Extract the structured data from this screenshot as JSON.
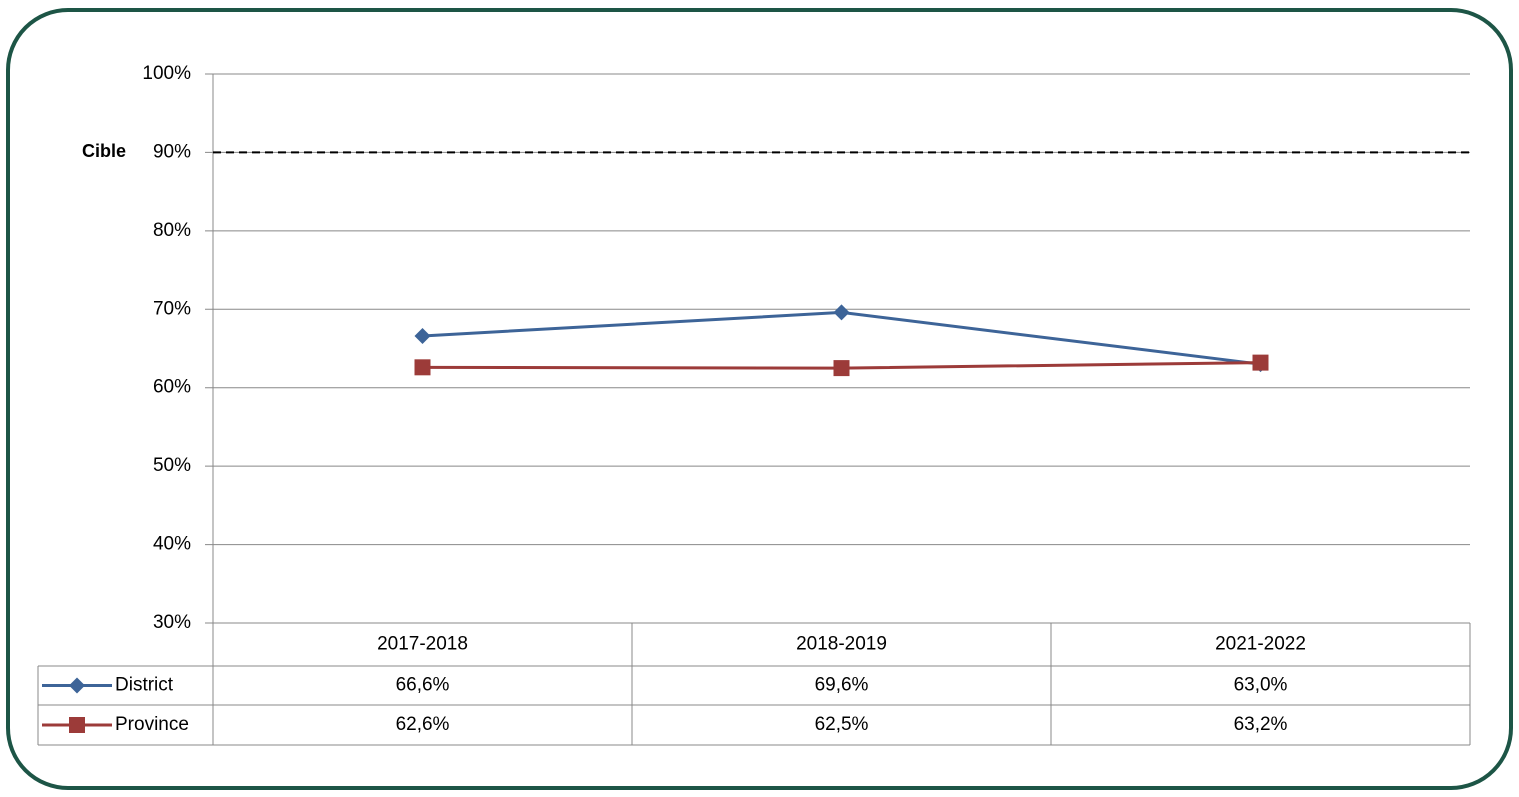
{
  "chart_data": {
    "type": "line",
    "categories": [
      "2017-2018",
      "2018-2019",
      "2021-2022"
    ],
    "series": [
      {
        "name": "District",
        "color": "#3d6498",
        "marker": "diamond",
        "values": [
          66.6,
          69.6,
          63.0
        ],
        "value_labels": [
          "66,6%",
          "69,6%",
          "63,0%"
        ]
      },
      {
        "name": "Province",
        "color": "#9c3b39",
        "marker": "square",
        "values": [
          62.6,
          62.5,
          63.2
        ],
        "value_labels": [
          "62,6%",
          "62,5%",
          "63,2%"
        ]
      }
    ],
    "ylim": [
      30,
      100
    ],
    "yticks": [
      {
        "value": 30,
        "label": "30%"
      },
      {
        "value": 40,
        "label": "40%"
      },
      {
        "value": 50,
        "label": "50%"
      },
      {
        "value": 60,
        "label": "60%"
      },
      {
        "value": 70,
        "label": "70%"
      },
      {
        "value": 80,
        "label": "80%"
      },
      {
        "value": 90,
        "label": "90%"
      },
      {
        "value": 100,
        "label": "100%"
      }
    ],
    "grid": true,
    "target": {
      "label": "Cible",
      "value": 90
    }
  }
}
